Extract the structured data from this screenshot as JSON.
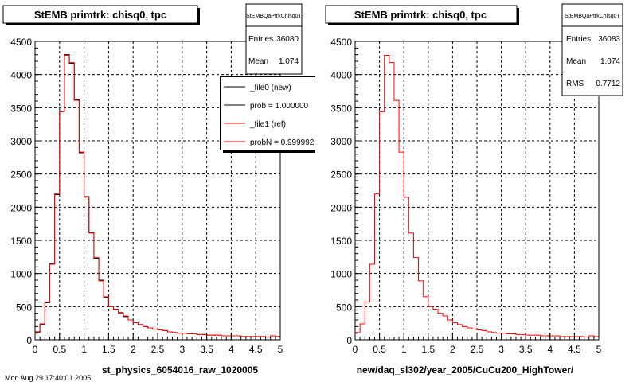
{
  "footer_text": "Mon Aug 29 17:40:01 2005",
  "chart_data": [
    {
      "type": "histogram",
      "title": "StEMB primtrk: chisq0, tpc",
      "xlabel": "st_physics_6054016_raw_1020005",
      "ylabel": "",
      "xlim": [
        0,
        5
      ],
      "ylim": [
        0,
        4500
      ],
      "grid": true,
      "xticks": [
        "0",
        "0.5",
        "1",
        "1.5",
        "2",
        "2.5",
        "3",
        "3.5",
        "4",
        "4.5",
        "5"
      ],
      "yticks": [
        "0",
        "500",
        "1000",
        "1500",
        "2000",
        "2500",
        "3000",
        "3500",
        "4000",
        "4500"
      ],
      "bin_width": 0.1,
      "stats": {
        "name": "StEMBQaPtrkChisq0T",
        "rows": [
          {
            "label": "Entries",
            "value": "36080"
          },
          {
            "label": "Mean",
            "value": "1.074"
          }
        ]
      },
      "legend": {
        "placement": "top-right",
        "entries": [
          {
            "label": "_file0 (new)",
            "color": "#000000"
          },
          {
            "label": "prob = 1.000000",
            "color": "#000000"
          },
          {
            "label": "_file1 (ref)",
            "color": "#ff0000"
          },
          {
            "label": "probN = 0.999992",
            "color": "#ff0000"
          }
        ]
      },
      "series": [
        {
          "color": "#000000",
          "values": [
            120,
            230,
            560,
            1150,
            2190,
            3450,
            4300,
            4170,
            3620,
            2820,
            2160,
            1620,
            1230,
            900,
            640,
            500,
            460,
            410,
            350,
            300,
            260,
            230,
            200,
            180,
            160,
            150,
            140,
            120,
            110,
            100,
            100,
            90,
            90,
            80,
            80,
            70,
            70,
            70,
            60,
            60,
            60,
            60,
            50,
            50,
            50,
            50,
            50,
            40,
            60,
            50
          ]
        },
        {
          "color": "#ff0000",
          "values": [
            110,
            240,
            570,
            1140,
            2200,
            3440,
            4290,
            4180,
            3610,
            2830,
            2150,
            1610,
            1240,
            890,
            650,
            500,
            460,
            400,
            360,
            300,
            260,
            230,
            200,
            180,
            160,
            150,
            140,
            120,
            110,
            100,
            100,
            90,
            90,
            80,
            80,
            70,
            70,
            70,
            60,
            60,
            60,
            60,
            50,
            50,
            50,
            50,
            50,
            40,
            60,
            50
          ]
        }
      ]
    },
    {
      "type": "histogram",
      "title": "StEMB primtrk: chisq0, tpc",
      "xlabel": "new/daq_sl302/year_2005/CuCu200_HighTower/",
      "ylabel": "",
      "xlim": [
        0,
        5
      ],
      "ylim": [
        0,
        4500
      ],
      "grid": true,
      "xticks": [
        "0",
        "0.5",
        "1",
        "1.5",
        "2",
        "2.5",
        "3",
        "3.5",
        "4",
        "4.5",
        "5"
      ],
      "yticks": [
        "0",
        "500",
        "1000",
        "1500",
        "2000",
        "2500",
        "3000",
        "3500",
        "4000",
        "4500"
      ],
      "bin_width": 0.1,
      "stats": {
        "name": "StEMBQaPtrkChisq0T",
        "rows": [
          {
            "label": "Entries",
            "value": "36083"
          },
          {
            "label": "Mean",
            "value": "1.074"
          },
          {
            "label": "RMS",
            "value": "0.7712"
          }
        ]
      },
      "series": [
        {
          "color": "#ff0000",
          "values": [
            110,
            240,
            570,
            1140,
            2200,
            3440,
            4290,
            4180,
            3610,
            2830,
            2150,
            1610,
            1240,
            890,
            650,
            500,
            460,
            400,
            360,
            300,
            260,
            230,
            200,
            180,
            160,
            150,
            140,
            120,
            110,
            100,
            100,
            90,
            90,
            80,
            80,
            70,
            70,
            70,
            60,
            60,
            60,
            60,
            50,
            50,
            50,
            50,
            50,
            40,
            60,
            50
          ]
        }
      ]
    }
  ]
}
